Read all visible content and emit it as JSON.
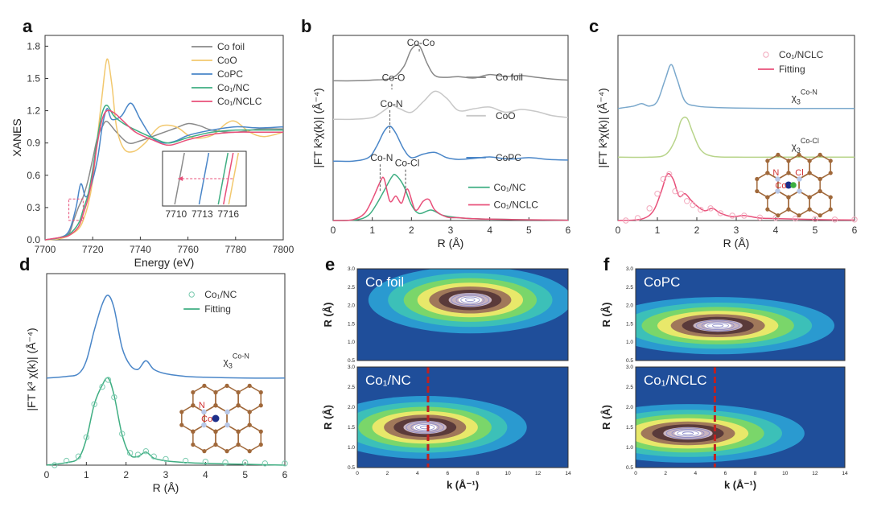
{
  "chart_data": [
    {
      "panel": "a",
      "type": "line",
      "xlabel": "Energy (eV)",
      "ylabel": "XANES",
      "xlim": [
        7700,
        7800
      ],
      "ylim": [
        0,
        1.9
      ],
      "xticks": [
        7700,
        7720,
        7740,
        7760,
        7780,
        7800
      ],
      "yticks": [
        0.0,
        0.3,
        0.6,
        0.9,
        1.2,
        1.5,
        1.8
      ],
      "legend": "top-right",
      "series": [
        {
          "name": "Co foil",
          "color": "#8a8a8a",
          "x": [
            7700,
            7706,
            7710,
            7712,
            7714,
            7716,
            7718,
            7720,
            7722,
            7724,
            7726,
            7730,
            7735,
            7740,
            7745,
            7750,
            7755,
            7760,
            7765,
            7770,
            7780,
            7790,
            7800
          ],
          "y": [
            0.0,
            0.02,
            0.06,
            0.18,
            0.3,
            0.4,
            0.55,
            0.75,
            0.95,
            1.05,
            1.1,
            1.0,
            0.9,
            0.92,
            0.96,
            1.0,
            1.04,
            1.08,
            1.06,
            1.02,
            1.0,
            1.03,
            1.03
          ]
        },
        {
          "name": "CoO",
          "color": "#f2c86e",
          "x": [
            7700,
            7706,
            7710,
            7714,
            7716,
            7718,
            7720,
            7722,
            7724,
            7726,
            7728,
            7730,
            7733,
            7737,
            7742,
            7748,
            7755,
            7762,
            7770,
            7776,
            7780,
            7786,
            7792,
            7800
          ],
          "y": [
            0.0,
            0.01,
            0.04,
            0.1,
            0.18,
            0.32,
            0.55,
            0.95,
            1.35,
            1.68,
            1.45,
            1.05,
            0.85,
            0.82,
            0.9,
            1.05,
            1.05,
            0.95,
            0.97,
            1.08,
            1.1,
            1.0,
            0.96,
            1.0
          ]
        },
        {
          "name": "CoPC",
          "color": "#4a86c8",
          "x": [
            7700,
            7706,
            7710,
            7713,
            7715,
            7717,
            7719,
            7722,
            7724,
            7726,
            7728,
            7732,
            7736,
            7740,
            7745,
            7750,
            7755,
            7760,
            7770,
            7780,
            7790,
            7800
          ],
          "y": [
            0.0,
            0.02,
            0.08,
            0.3,
            0.52,
            0.4,
            0.48,
            0.75,
            1.05,
            1.22,
            1.12,
            1.15,
            1.27,
            1.12,
            0.95,
            0.9,
            0.92,
            0.97,
            1.02,
            1.05,
            1.04,
            1.05
          ]
        },
        {
          "name": "Co₁/NC",
          "color": "#3fae82",
          "x": [
            7700,
            7706,
            7710,
            7714,
            7716,
            7718,
            7720,
            7722,
            7724,
            7726,
            7729,
            7733,
            7738,
            7745,
            7752,
            7760,
            7770,
            7780,
            7790,
            7800
          ],
          "y": [
            0.0,
            0.02,
            0.05,
            0.15,
            0.28,
            0.42,
            0.65,
            0.95,
            1.18,
            1.25,
            1.15,
            1.08,
            1.02,
            0.95,
            0.9,
            0.95,
            1.0,
            1.02,
            1.02,
            1.02
          ]
        },
        {
          "name": "Co₁/NCLC",
          "color": "#e8507a",
          "x": [
            7700,
            7706,
            7710,
            7714,
            7716,
            7718,
            7720,
            7722,
            7724,
            7726,
            7729,
            7733,
            7738,
            7745,
            7752,
            7760,
            7770,
            7780,
            7790,
            7800
          ],
          "y": [
            0.0,
            0.02,
            0.04,
            0.12,
            0.24,
            0.38,
            0.6,
            0.9,
            1.12,
            1.2,
            1.18,
            1.1,
            1.0,
            0.93,
            0.88,
            0.93,
            0.98,
            1.0,
            1.0,
            1.0
          ]
        }
      ],
      "inset": {
        "xticks": [
          7710,
          7713,
          7716
        ]
      }
    },
    {
      "panel": "b",
      "type": "line",
      "xlabel": "R (Å)",
      "ylabel": "|FT k³χ(k)| (Å⁻⁴)",
      "xlim": [
        0,
        6
      ],
      "xticks": [
        0,
        1,
        2,
        3,
        4,
        5,
        6
      ],
      "legend": "right",
      "series": [
        {
          "name": "Co foil",
          "color": "#888888",
          "offset": 4.0,
          "x": [
            0,
            0.5,
            1.0,
            1.5,
            1.8,
            2.0,
            2.2,
            2.4,
            2.6,
            2.9,
            3.2,
            3.6,
            4.0,
            4.4,
            4.8,
            5.2,
            5.6,
            6.0
          ],
          "y": [
            0.0,
            0.0,
            0.02,
            0.08,
            0.4,
            0.9,
            1.0,
            0.5,
            0.15,
            0.1,
            0.12,
            0.08,
            0.18,
            0.12,
            0.15,
            0.1,
            0.05,
            0.02
          ]
        },
        {
          "name": "CoO",
          "color": "#c8c8c8",
          "offset": 2.9,
          "x": [
            0,
            0.5,
            1.0,
            1.3,
            1.5,
            1.7,
            2.0,
            2.3,
            2.6,
            2.9,
            3.2,
            3.6,
            4.0,
            4.4,
            4.8,
            5.2,
            5.6,
            6.0
          ],
          "y": [
            0.0,
            0.0,
            0.05,
            0.25,
            0.4,
            0.3,
            0.2,
            0.5,
            0.8,
            0.6,
            0.25,
            0.3,
            0.35,
            0.2,
            0.28,
            0.22,
            0.1,
            0.05
          ]
        },
        {
          "name": "CoPC",
          "color": "#4a86c8",
          "offset": 1.7,
          "x": [
            0,
            0.5,
            0.9,
            1.1,
            1.3,
            1.45,
            1.6,
            1.8,
            2.0,
            2.3,
            2.6,
            2.9,
            3.2,
            3.6,
            4.0,
            4.5,
            5.0,
            5.5,
            6.0
          ],
          "y": [
            0.0,
            0.0,
            0.1,
            0.4,
            0.85,
            1.0,
            0.8,
            0.35,
            0.1,
            0.2,
            0.25,
            0.1,
            0.05,
            0.08,
            0.12,
            0.06,
            0.1,
            0.05,
            0.03
          ]
        },
        {
          "name": "Co₁/NC",
          "color": "#3fae82",
          "offset": 0.0,
          "x": [
            0,
            0.6,
            0.9,
            1.1,
            1.3,
            1.5,
            1.6,
            1.8,
            2.0,
            2.2,
            2.5,
            2.8,
            3.2,
            3.6,
            4.0,
            5.0,
            6.0
          ],
          "y": [
            0.0,
            0.02,
            0.15,
            0.45,
            0.85,
            1.25,
            1.3,
            1.0,
            0.45,
            0.2,
            0.3,
            0.15,
            0.08,
            0.05,
            0.04,
            0.02,
            0.01
          ]
        },
        {
          "name": "Co₁/NCLC",
          "color": "#e8507a",
          "offset": 0.0,
          "x": [
            0,
            0.5,
            0.8,
            1.0,
            1.2,
            1.3,
            1.45,
            1.6,
            1.75,
            1.9,
            2.1,
            2.3,
            2.45,
            2.6,
            2.9,
            3.2,
            3.6,
            4.0,
            5.0,
            6.0
          ],
          "y": [
            0.0,
            0.02,
            0.2,
            0.6,
            1.1,
            1.2,
            0.55,
            0.7,
            0.5,
            0.9,
            0.3,
            0.55,
            0.6,
            0.3,
            0.1,
            0.08,
            0.05,
            0.04,
            0.02,
            0.01
          ]
        }
      ],
      "annotations": [
        {
          "text": "Co-Co",
          "x": 2.2
        },
        {
          "text": "Co-O",
          "x": 1.5
        },
        {
          "text": "Co-N",
          "x": 1.45
        },
        {
          "text": "Co-N",
          "x": 1.2
        },
        {
          "text": "Co-Cl",
          "x": 1.85
        }
      ]
    },
    {
      "panel": "c",
      "type": "line",
      "xlabel": "R (Å)",
      "ylabel": "|FT k³χ(k)| (Å⁻⁴)",
      "xlim": [
        0,
        6
      ],
      "xticks": [
        0,
        1,
        2,
        3,
        4,
        5,
        6
      ],
      "legend": "top-right",
      "series": [
        {
          "name": "χ₃ Co-N",
          "color": "#7aa8cc",
          "offset": 2.3,
          "x": [
            0,
            0.4,
            0.6,
            0.8,
            1.0,
            1.2,
            1.35,
            1.5,
            1.7,
            2.0,
            2.5,
            3,
            4,
            5,
            6
          ],
          "y": [
            0.0,
            0.05,
            0.1,
            0.05,
            0.15,
            0.6,
            0.9,
            0.6,
            0.15,
            0.05,
            0.02,
            0.01,
            0.0,
            0.0,
            0.0
          ]
        },
        {
          "name": "χ₃ Co-Cl",
          "color": "#b8d48a",
          "offset": 1.3,
          "x": [
            0,
            0.8,
            1.2,
            1.45,
            1.6,
            1.75,
            1.9,
            2.1,
            2.4,
            3,
            4,
            5,
            6
          ],
          "y": [
            0.0,
            0.0,
            0.05,
            0.35,
            0.75,
            0.8,
            0.5,
            0.15,
            0.02,
            0.0,
            0.0,
            0.0,
            0.0
          ]
        },
        {
          "name": "Fitting",
          "color": "#e8507a",
          "offset": 0.0,
          "x": [
            0,
            0.6,
            0.9,
            1.1,
            1.25,
            1.4,
            1.55,
            1.7,
            1.85,
            2.0,
            2.2,
            2.4,
            2.6,
            2.9,
            3.2,
            3.6,
            4.0,
            5.0,
            6.0
          ],
          "y": [
            0.0,
            0.03,
            0.2,
            0.6,
            0.95,
            0.85,
            0.5,
            0.55,
            0.42,
            0.3,
            0.2,
            0.25,
            0.15,
            0.08,
            0.1,
            0.05,
            0.04,
            0.02,
            0.01
          ]
        },
        {
          "name": "Co₁/NCLC",
          "color": "#f2a8bc",
          "offset": 0.0,
          "marker": "circle",
          "x": [
            0.2,
            0.5,
            0.8,
            1.0,
            1.15,
            1.3,
            1.45,
            1.6,
            1.75,
            1.9,
            2.1,
            2.35,
            2.6,
            2.9,
            3.2,
            3.6,
            4.0,
            4.5,
            5.0,
            5.5,
            6.0
          ],
          "y": [
            0.0,
            0.05,
            0.25,
            0.55,
            0.85,
            0.95,
            0.6,
            0.55,
            0.4,
            0.32,
            0.22,
            0.25,
            0.15,
            0.1,
            0.1,
            0.06,
            0.05,
            0.04,
            0.03,
            0.02,
            0.02
          ]
        }
      ],
      "labels": {
        "chi_cn": "Co-N",
        "chi_ccl": "Co-Cl",
        "chi": "χ"
      }
    },
    {
      "panel": "d",
      "type": "line",
      "xlabel": "R (Å)",
      "ylabel": "|FT k³ χ(k)| (Å⁻⁴)",
      "xlim": [
        0,
        6
      ],
      "xticks": [
        0,
        1,
        2,
        3,
        4,
        5,
        6
      ],
      "legend": "top-right",
      "series": [
        {
          "name": "χ₃ Co-N",
          "color": "#4a86c8",
          "offset": 1.0,
          "x": [
            0,
            0.5,
            0.8,
            1.0,
            1.2,
            1.4,
            1.55,
            1.7,
            1.9,
            2.1,
            2.3,
            2.5,
            2.7,
            3.0,
            3.5,
            4,
            5,
            6
          ],
          "y": [
            0.0,
            0.02,
            0.05,
            0.2,
            0.55,
            0.85,
            0.95,
            0.8,
            0.35,
            0.15,
            0.1,
            0.2,
            0.1,
            0.05,
            0.02,
            0.01,
            0.0,
            0.0
          ]
        },
        {
          "name": "Fitting",
          "color": "#3fae82",
          "offset": 0.0,
          "x": [
            0,
            0.5,
            0.8,
            1.0,
            1.2,
            1.4,
            1.55,
            1.7,
            1.9,
            2.1,
            2.3,
            2.5,
            2.7,
            3.0,
            3.5,
            4,
            5,
            6
          ],
          "y": [
            0.0,
            0.03,
            0.08,
            0.3,
            0.7,
            0.92,
            1.0,
            0.8,
            0.35,
            0.12,
            0.1,
            0.15,
            0.08,
            0.05,
            0.03,
            0.02,
            0.01,
            0.0
          ]
        },
        {
          "name": "Co₁/NC",
          "color": "#7ccbb0",
          "offset": 0.0,
          "marker": "circle",
          "x": [
            0.2,
            0.5,
            0.8,
            1.0,
            1.2,
            1.4,
            1.55,
            1.7,
            1.9,
            2.1,
            2.3,
            2.5,
            2.7,
            3.0,
            3.5,
            4,
            4.5,
            5,
            5.5,
            6
          ],
          "y": [
            0.0,
            0.05,
            0.1,
            0.32,
            0.7,
            0.9,
            0.98,
            0.78,
            0.36,
            0.14,
            0.12,
            0.16,
            0.1,
            0.07,
            0.05,
            0.04,
            0.03,
            0.03,
            0.02,
            0.02
          ]
        }
      ],
      "labels": {
        "chi_cn": "Co-N",
        "chi": "χ"
      }
    },
    {
      "panel": "e",
      "type": "heatmap",
      "xlabel": "k (Å⁻¹)",
      "ylabel": "R (Å)",
      "xlim": [
        0,
        14
      ],
      "ylim": [
        0.5,
        3.0
      ],
      "xticks": [
        0,
        2,
        4,
        6,
        8,
        10,
        12,
        14
      ],
      "yticks": [
        0.5,
        1.0,
        1.5,
        2.0,
        2.5,
        3.0
      ],
      "maps": [
        {
          "title": "Co foil",
          "peak": {
            "k": 7.5,
            "R": 2.15
          },
          "spread": {
            "k": 2.6,
            "R": 0.35
          }
        },
        {
          "title": "Co₁/NC",
          "peak": {
            "k": 4.5,
            "R": 1.5
          },
          "spread": {
            "k": 2.6,
            "R": 0.3
          },
          "marker_k": 4.7
        }
      ]
    },
    {
      "panel": "f",
      "type": "heatmap",
      "xlabel": "k (Å⁻¹)",
      "ylabel": "R (Å)",
      "xlim": [
        0,
        14
      ],
      "ylim": [
        0.5,
        3.0
      ],
      "xticks": [
        0,
        2,
        4,
        6,
        8,
        10,
        12,
        14
      ],
      "yticks": [
        0.5,
        1.0,
        1.5,
        2.0,
        2.5,
        3.0
      ],
      "maps": [
        {
          "title": "CoPC",
          "peak": {
            "k": 5.5,
            "R": 1.45
          },
          "spread": {
            "k": 3.0,
            "R": 0.3
          }
        },
        {
          "title": "Co₁/NCLC",
          "peak": {
            "k": 3.5,
            "R": 1.35
          },
          "spread": {
            "k": 3.0,
            "R": 0.28
          },
          "marker_k": 5.3
        }
      ]
    }
  ],
  "panel_letters": [
    "a",
    "b",
    "c",
    "d",
    "e",
    "f"
  ],
  "struct_labels": {
    "n": "N",
    "co": "Co",
    "cl": "Cl"
  }
}
